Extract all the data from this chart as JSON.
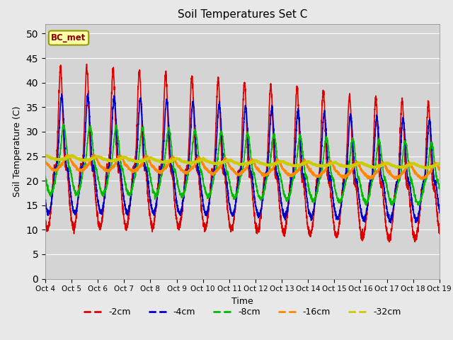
{
  "title": "Soil Temperatures Set C",
  "xlabel": "Time",
  "ylabel": "Soil Temperature (C)",
  "annotation": "BC_met",
  "ylim": [
    0,
    52
  ],
  "yticks": [
    0,
    5,
    10,
    15,
    20,
    25,
    30,
    35,
    40,
    45,
    50
  ],
  "xlim": [
    0,
    15
  ],
  "xtick_labels": [
    "Oct 4",
    "Oct 5",
    "Oct 6",
    "Oct 7",
    "Oct 8",
    "Oct 9",
    "Oct 10",
    "Oct 11",
    "Oct 12",
    "Oct 13",
    "Oct 14",
    "Oct 15",
    "Oct 16",
    "Oct 17",
    "Oct 18",
    "Oct 19"
  ],
  "series": {
    "-2cm": {
      "color": "#dd0000",
      "lw": 1.2
    },
    "-4cm": {
      "color": "#0000cc",
      "lw": 1.2
    },
    "-8cm": {
      "color": "#00bb00",
      "lw": 1.2
    },
    "-16cm": {
      "color": "#ff8800",
      "lw": 1.5
    },
    "-32cm": {
      "color": "#cccc00",
      "lw": 2.0
    }
  },
  "bg_color": "#e8e8e8",
  "plot_bg": "#d4d4d4",
  "figsize": [
    6.4,
    4.8
  ],
  "dpi": 100
}
